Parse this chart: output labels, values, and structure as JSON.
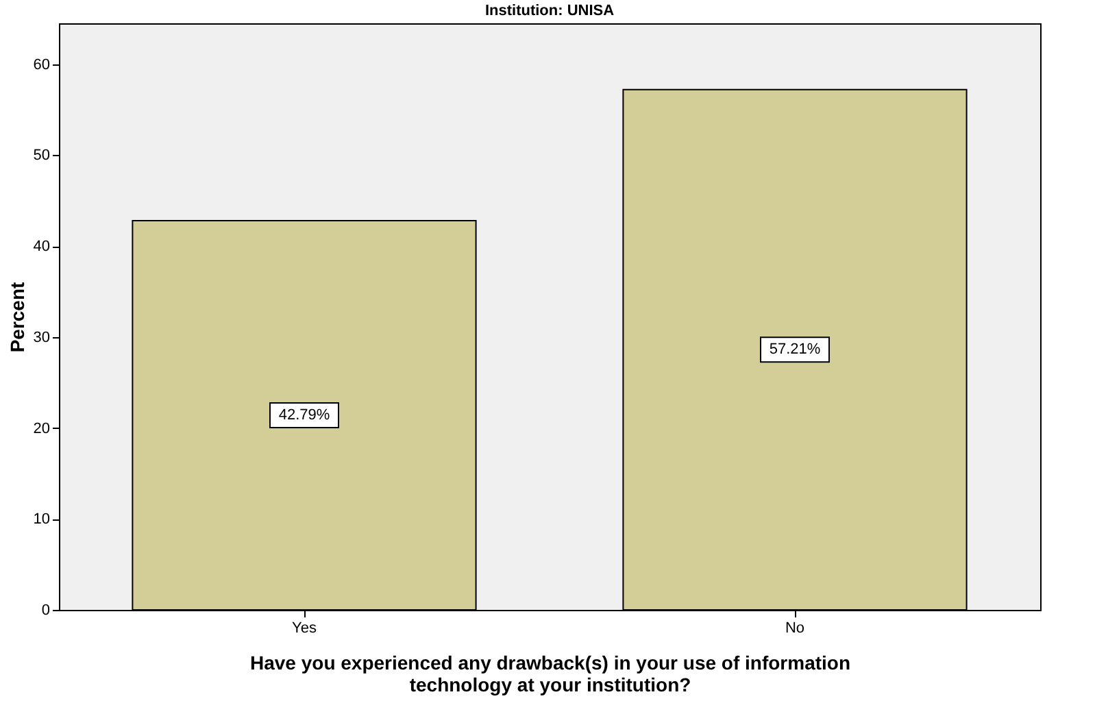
{
  "chart_data": {
    "type": "bar",
    "title": "Institution: UNISA",
    "xlabel": "Have you experienced any drawback(s) in your use of information technology at your institution?",
    "ylabel": "Percent",
    "categories": [
      "Yes",
      "No"
    ],
    "values": [
      42.79,
      57.21
    ],
    "value_labels": [
      "42.79%",
      "57.21%"
    ],
    "color": "#d3ce97",
    "ylim": [
      0,
      64.5
    ],
    "yticks": [
      0,
      10,
      20,
      30,
      40,
      50,
      60
    ],
    "grid": false
  }
}
